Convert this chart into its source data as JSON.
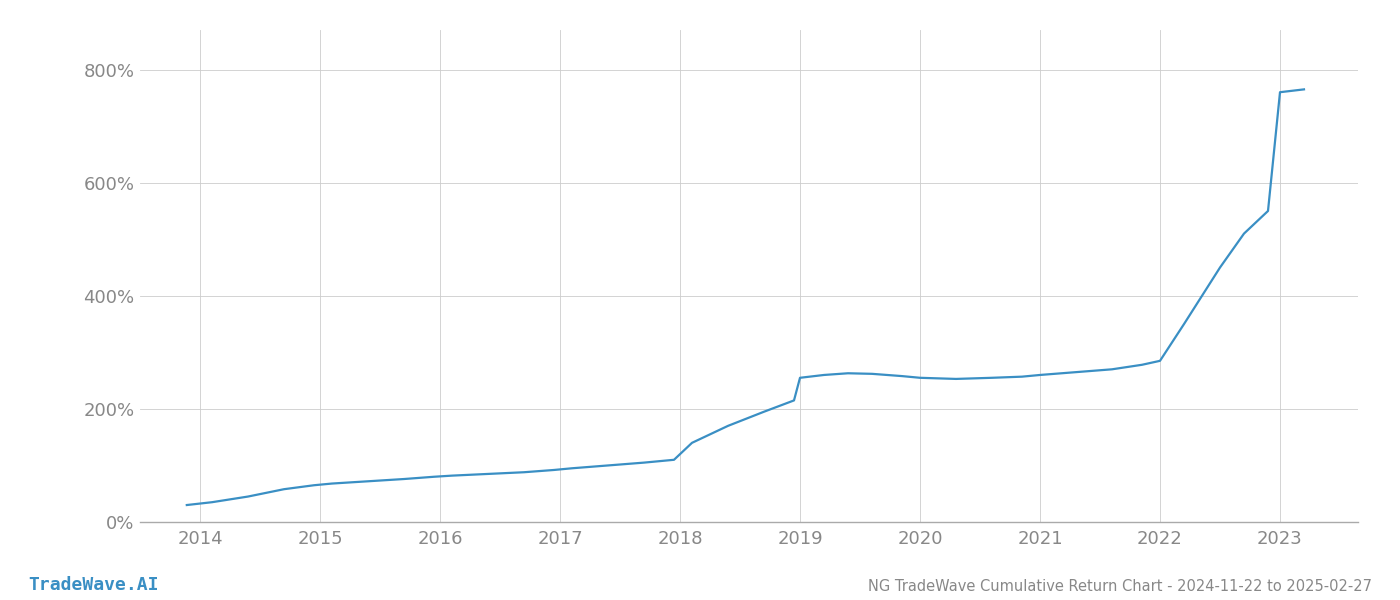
{
  "title": "NG TradeWave Cumulative Return Chart - 2024-11-22 to 2025-02-27",
  "watermark": "TradeWave.AI",
  "line_color": "#3a8fc4",
  "background_color": "#ffffff",
  "grid_color": "#cccccc",
  "x_years": [
    2014,
    2015,
    2016,
    2017,
    2018,
    2019,
    2020,
    2021,
    2022,
    2023
  ],
  "x_values": [
    2013.89,
    2014.1,
    2014.4,
    2014.7,
    2014.95,
    2015.1,
    2015.4,
    2015.7,
    2015.95,
    2016.1,
    2016.4,
    2016.7,
    2016.95,
    2017.1,
    2017.4,
    2017.7,
    2017.95,
    2018.1,
    2018.4,
    2018.7,
    2018.95,
    2019.0,
    2019.2,
    2019.4,
    2019.6,
    2019.85,
    2020.0,
    2020.3,
    2020.6,
    2020.85,
    2021.0,
    2021.3,
    2021.6,
    2021.85,
    2022.0,
    2022.2,
    2022.5,
    2022.7,
    2022.9,
    2023.0,
    2023.2
  ],
  "y_values": [
    30,
    35,
    45,
    58,
    65,
    68,
    72,
    76,
    80,
    82,
    85,
    88,
    92,
    95,
    100,
    105,
    110,
    140,
    170,
    195,
    215,
    255,
    260,
    263,
    262,
    258,
    255,
    253,
    255,
    257,
    260,
    265,
    270,
    278,
    285,
    350,
    450,
    510,
    550,
    760,
    765
  ],
  "ylim": [
    0,
    870
  ],
  "yticks": [
    0,
    200,
    400,
    600,
    800
  ],
  "xlim": [
    2013.5,
    2023.65
  ],
  "line_width": 1.6,
  "title_fontsize": 10.5,
  "tick_fontsize": 13,
  "watermark_fontsize": 13,
  "title_color": "#888888",
  "tick_color": "#888888",
  "watermark_color": "#3a8fc4",
  "spine_color": "#aaaaaa"
}
